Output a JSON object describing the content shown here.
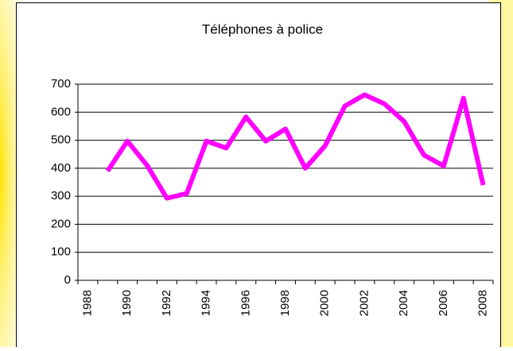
{
  "chart_data": {
    "type": "line",
    "title": "Téléphones à police",
    "categories": [
      "1988",
      null,
      "1990",
      null,
      "1992",
      null,
      "1994",
      null,
      "1996",
      null,
      "1998",
      null,
      "2000",
      null,
      "2002",
      null,
      "2004",
      null,
      "2006",
      null,
      "2008"
    ],
    "series": [
      {
        "name": "Téléphones à police",
        "color": "#ff00ff",
        "values": [
          null,
          390,
          497,
          410,
          293,
          310,
          497,
          472,
          583,
          497,
          540,
          400,
          480,
          622,
          662,
          630,
          567,
          447,
          408,
          650,
          340
        ]
      }
    ],
    "ylim": [
      0,
      700
    ],
    "yticks": [
      0,
      100,
      200,
      300,
      400,
      500,
      600,
      700
    ],
    "grid": true
  }
}
